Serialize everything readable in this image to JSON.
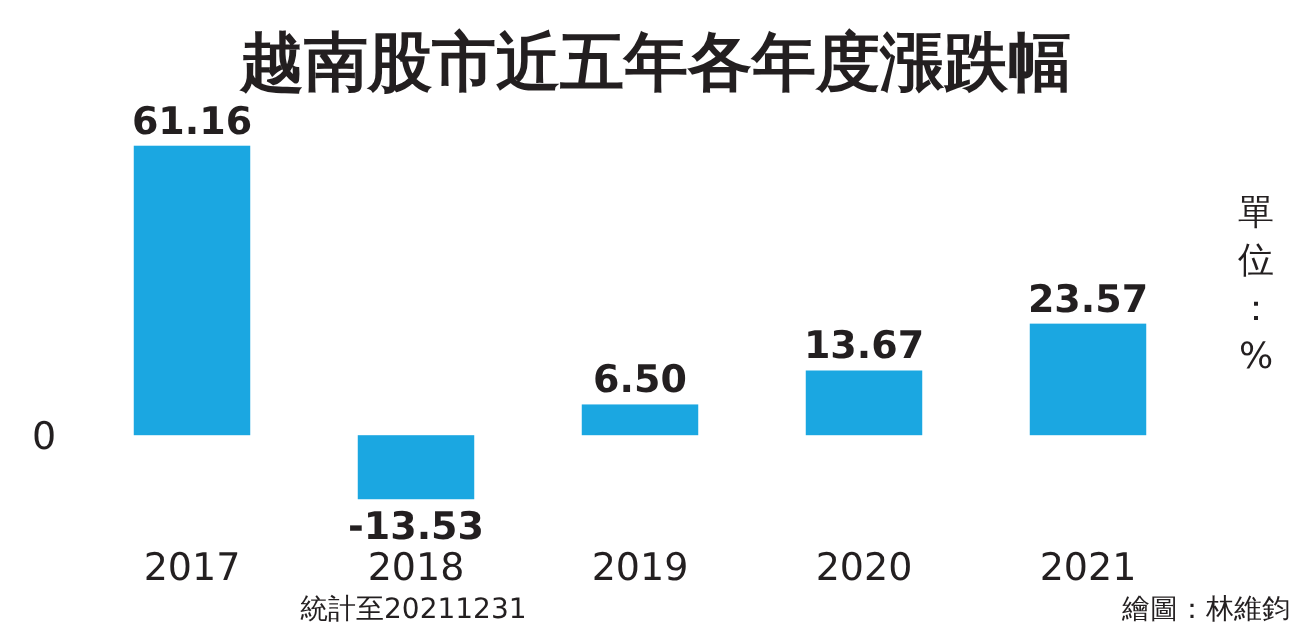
{
  "chart_data": {
    "type": "bar",
    "title": "越南股市近五年各年度漲跌幅",
    "ylabel": "單位：%",
    "categories": [
      "2017",
      "2018",
      "2019",
      "2020",
      "2021"
    ],
    "values": [
      61.16,
      -13.53,
      6.5,
      13.67,
      23.57
    ],
    "value_labels": [
      "61.16",
      "-13.53",
      "6.50",
      "13.67",
      "23.57"
    ],
    "color": "#1ba7e1",
    "annotations": [
      "統計至20211231",
      "繪圖：林維鈞",
      "0"
    ]
  }
}
